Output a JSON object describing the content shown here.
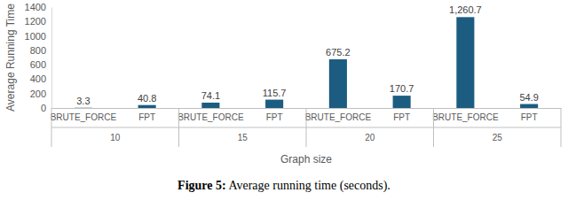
{
  "chart_data": {
    "type": "bar",
    "title": "Figure 5: Average running time (seconds).",
    "y_label": "Average Running Time",
    "x_label": "Graph size",
    "groups": [
      "10",
      "15",
      "20",
      "25"
    ],
    "categories": [
      "BRUTE_FORCE",
      "FPT",
      "BRUTE_FORCE",
      "FPT",
      "BRUTE_FORCE",
      "FPT",
      "BRUTE_FORCE",
      "FPT"
    ],
    "values": [
      3.3,
      40.8,
      74.1,
      115.7,
      675.2,
      170.7,
      1260.7,
      54.9
    ],
    "value_labels": [
      "3.3",
      "40.8",
      "74.1",
      "115.7",
      "675.2",
      "170.7",
      "1,260.7",
      "54.9"
    ],
    "color": "#1c5c80",
    "ylim": [
      0,
      1400
    ],
    "yticks": [
      0,
      200,
      400,
      600,
      800,
      1000,
      1200,
      1400
    ],
    "grid": false,
    "data_labels": true
  }
}
